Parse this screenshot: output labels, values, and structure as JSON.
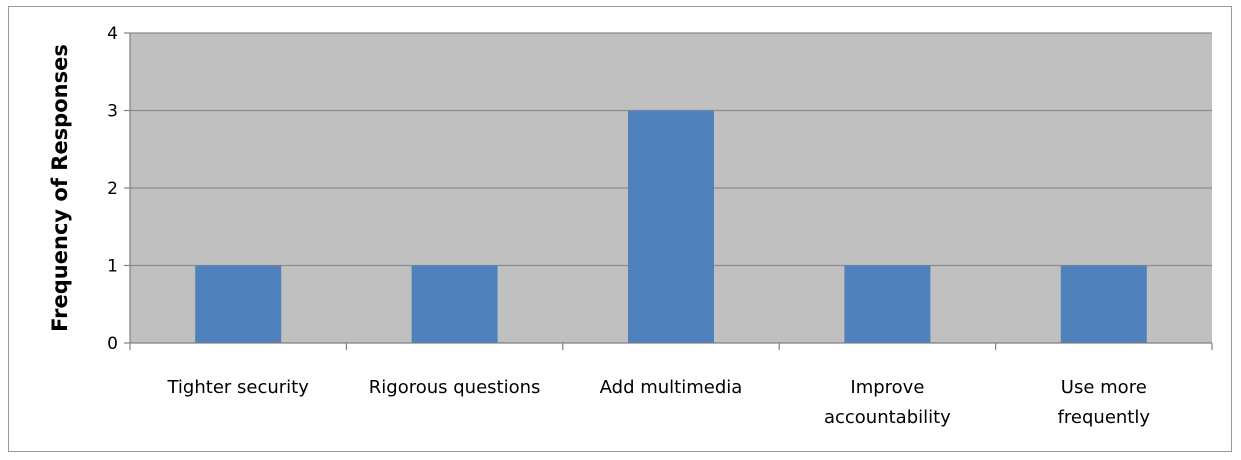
{
  "chart_data": {
    "type": "bar",
    "categories": [
      [
        "Tighter security"
      ],
      [
        "Rigorous questions"
      ],
      [
        "Add multimedia"
      ],
      [
        "Improve",
        "accountability"
      ],
      [
        "Use more",
        "frequently"
      ]
    ],
    "values": [
      1,
      1,
      3,
      1,
      1
    ],
    "title": "",
    "xlabel": "",
    "ylabel": "Frequency of Responses",
    "ylim": [
      0,
      4
    ],
    "yticks": [
      "0",
      "1",
      "2",
      "3",
      "4"
    ],
    "grid": true,
    "legend": "none",
    "colors": {
      "bar": "#4f81bd",
      "plot_background": "#c0c0c0",
      "gridline": "#8c8c8c",
      "axis": "#808080"
    }
  }
}
